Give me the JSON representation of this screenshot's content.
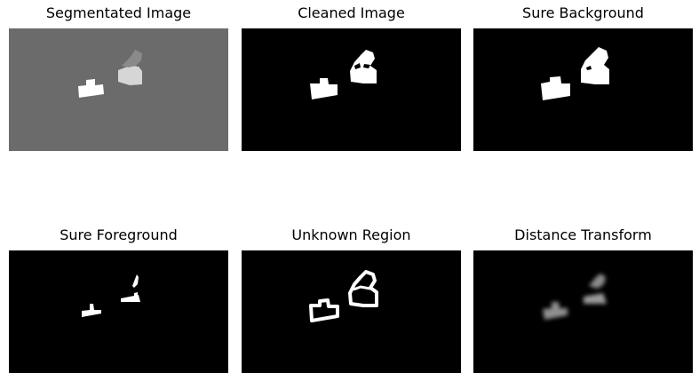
{
  "figure": {
    "panels": [
      {
        "id": "segmentated",
        "title": "Segmentated Image",
        "background": "#6b6b6b",
        "fill": "#ffffff",
        "second_fill": "#d6d6d6",
        "top_fill": "#8a8a8a"
      },
      {
        "id": "cleaned",
        "title": "Cleaned Image",
        "background": "#000000",
        "fill": "#ffffff"
      },
      {
        "id": "sure-bg",
        "title": "Sure Background",
        "background": "#000000",
        "fill": "#ffffff"
      },
      {
        "id": "sure-fg",
        "title": "Sure Foreground",
        "background": "#000000",
        "fill": "#ffffff"
      },
      {
        "id": "unknown",
        "title": "Unknown Region",
        "background": "#000000",
        "stroke": "#ffffff"
      },
      {
        "id": "distance",
        "title": "Distance Transform",
        "background": "#000000",
        "fill": "#9a9a9a"
      }
    ]
  }
}
